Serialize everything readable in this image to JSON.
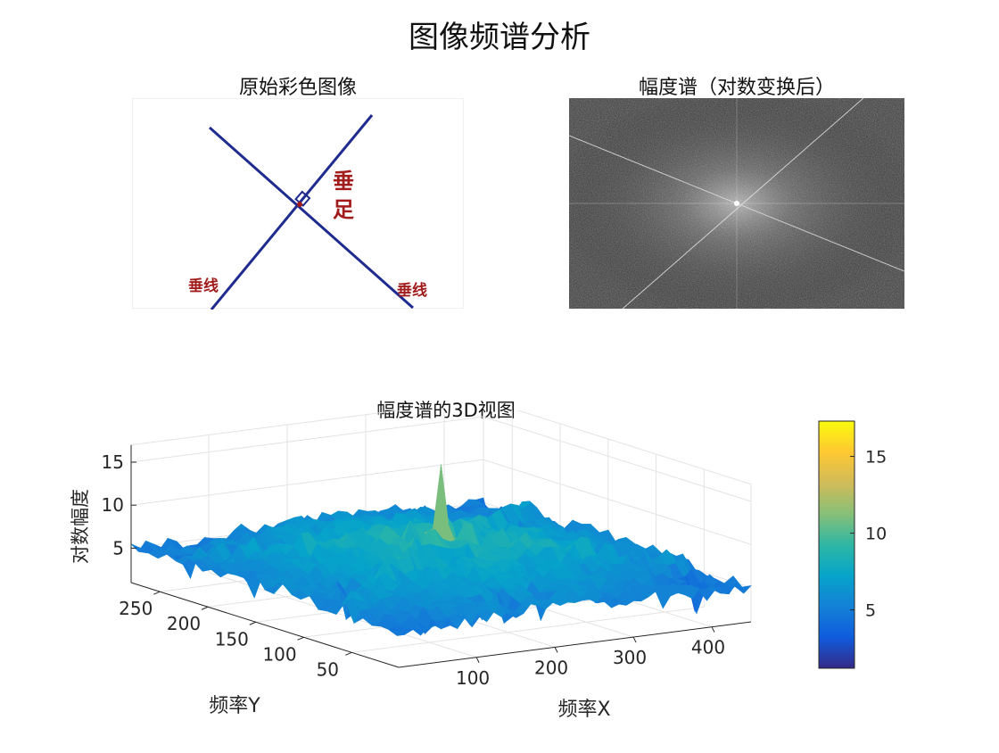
{
  "figure": {
    "title": "图像频谱分析"
  },
  "panels": {
    "original": {
      "title": "原始彩色图像",
      "labels": {
        "foot": "垂足",
        "foot_line1": "垂",
        "foot_line2": "足",
        "line_left": "垂线",
        "line_right": "垂线"
      },
      "colors": {
        "line": "#1f2b8f",
        "text": "#a21c1c",
        "background": "#ffffff"
      }
    },
    "spectrum": {
      "title": "幅度谱（对数变换后）",
      "colors": {
        "background": "#2b2b2b",
        "bright": "#e8e8e8"
      }
    },
    "surface": {
      "title": "幅度谱的3D视图",
      "xlabel": "频率X",
      "ylabel": "频率Y",
      "zlabel": "对数幅度"
    }
  },
  "chart_data": {
    "type": "surface",
    "title": "幅度谱的3D视图",
    "xlabel": "频率X",
    "ylabel": "频率Y",
    "zlabel": "对数幅度",
    "x_ticks": [
      100,
      200,
      300,
      400
    ],
    "y_ticks": [
      50,
      100,
      150,
      200,
      250
    ],
    "z_ticks": [
      5,
      10,
      15
    ],
    "xlim": [
      1,
      450
    ],
    "ylim": [
      1,
      280
    ],
    "zlim": [
      1,
      17
    ],
    "z_center_peak": 17,
    "z_typical_range": [
      5,
      9
    ],
    "colormap": "parula",
    "colorbar": {
      "ticks": [
        5,
        10,
        15
      ],
      "range": [
        1.2,
        17.3
      ],
      "colors": [
        "#352a87",
        "#0f5cdd",
        "#1481d6",
        "#06a4ca",
        "#2eb7a4",
        "#87bf77",
        "#d1bb59",
        "#fec832",
        "#f9fb0e"
      ]
    },
    "grid": true
  }
}
